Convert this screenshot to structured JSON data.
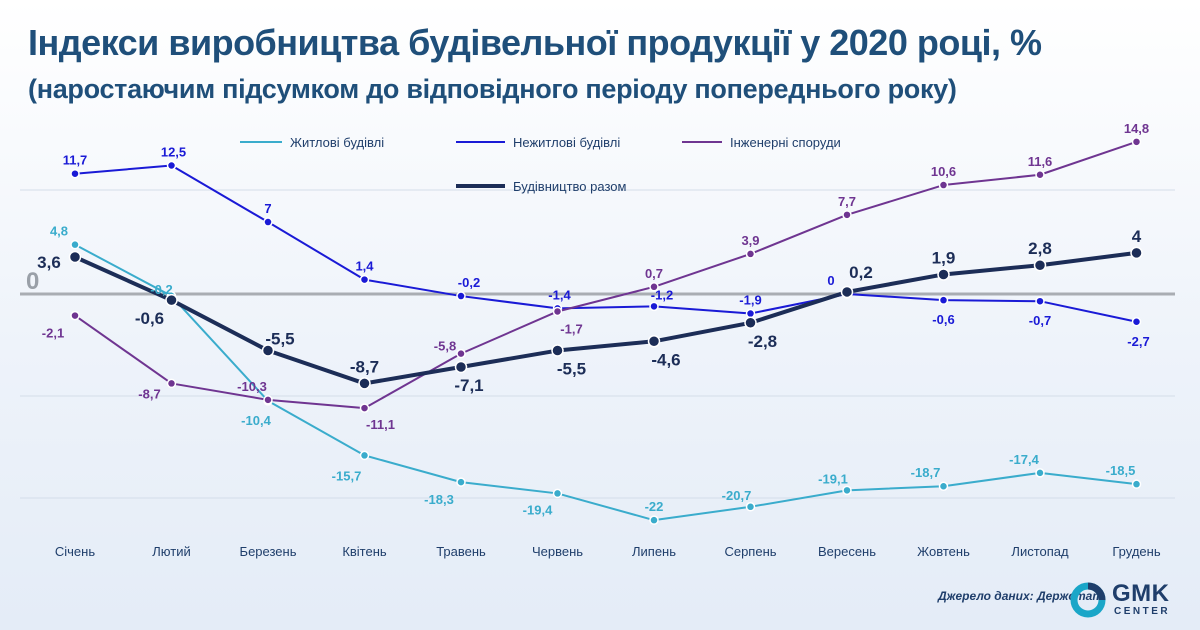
{
  "title": "Індекси виробництва будівельної продукції у 2020 році, %",
  "subtitle": "(наростаючим підсумком до відповідного періоду попереднього року)",
  "source": "Джерело даних: Держстат",
  "logo": {
    "main": "GMK",
    "sub": "CENTER",
    "ring_color": "#1aa6c8",
    "dark_color": "#1f3e6b"
  },
  "chart_data": {
    "type": "line",
    "categories": [
      "Січень",
      "Лютий",
      "Березень",
      "Квітень",
      "Травень",
      "Червень",
      "Липень",
      "Серпень",
      "Вересень",
      "Жовтень",
      "Листопад",
      "Грудень"
    ],
    "zero_label": "0",
    "ylim": [
      -22,
      14.8
    ],
    "grid": true,
    "legend_position": "top",
    "series": [
      {
        "name": "Житлові будівлі",
        "color": "#3aaccc",
        "values": [
          4.8,
          -0.2,
          -10.4,
          -15.7,
          -18.3,
          -19.4,
          -22,
          -20.7,
          -19.1,
          -18.7,
          -17.4,
          -18.5
        ],
        "labels": [
          "4,8",
          "-0,2",
          "-10,4",
          "-15,7",
          "-18,3",
          "-19,4",
          "-22",
          "-20,7",
          "-19,1",
          "-18,7",
          "-17,4",
          "-18,5"
        ]
      },
      {
        "name": "Нежитлові будівлі",
        "color": "#1a1ad6",
        "values": [
          11.7,
          12.5,
          7,
          1.4,
          -0.2,
          -1.4,
          -1.2,
          -1.9,
          0,
          -0.6,
          -0.7,
          -2.7
        ],
        "labels": [
          "11,7",
          "12,5",
          "7",
          "1,4",
          "-0,2",
          "-1,4",
          "-1,2",
          "-1,9",
          "0",
          "-0,6",
          "-0,7",
          "-2,7"
        ]
      },
      {
        "name": "Інженерні споруди",
        "color": "#6f3591",
        "values": [
          -2.1,
          -8.7,
          -10.3,
          -11.1,
          -5.8,
          -1.7,
          0.7,
          3.9,
          7.7,
          10.6,
          11.6,
          14.8
        ],
        "labels": [
          "-2,1",
          "-8,7",
          "-10,3",
          "-11,1",
          "-5,8",
          "-1,7",
          "0,7",
          "3,9",
          "7,7",
          "10,6",
          "11,6",
          "14,8"
        ]
      },
      {
        "name": "Будівництво разом",
        "color": "#1c2d57",
        "values": [
          3.6,
          -0.6,
          -5.5,
          -8.7,
          -7.1,
          -5.5,
          -4.6,
          -2.8,
          0.2,
          1.9,
          2.8,
          4
        ],
        "labels": [
          "3,6",
          "-0,6",
          "-5,5",
          "-8,7",
          "-7,1",
          "-5,5",
          "-4,6",
          "-2,8",
          "0,2",
          "1,9",
          "2,8",
          "4"
        ]
      }
    ]
  }
}
